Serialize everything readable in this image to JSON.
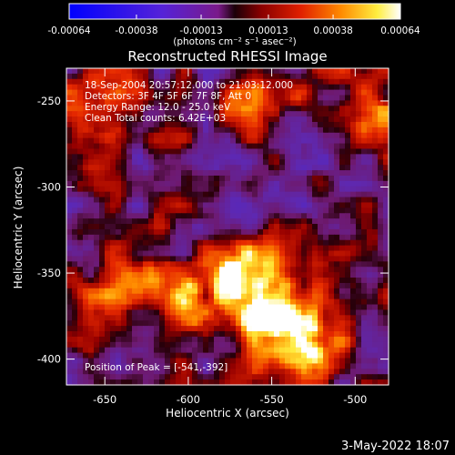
{
  "chart_data": {
    "type": "heatmap",
    "title": "Reconstructed RHESSI Image",
    "xlabel": "Heliocentric X (arcsec)",
    "ylabel": "Heliocentric Y (arcsec)",
    "xlim": [
      -673,
      -480
    ],
    "ylim": [
      -415,
      -231
    ],
    "x_ticks": [
      "-650",
      "-600",
      "-550",
      "-500"
    ],
    "x_tick_values": [
      -650,
      -600,
      -550,
      -500
    ],
    "y_ticks": [
      "-250",
      "-300",
      "-350",
      "-400"
    ],
    "y_tick_values": [
      -250,
      -300,
      -350,
      -400
    ],
    "colorbar": {
      "tick_labels": [
        "-0.00064",
        "-0.00038",
        "-0.00013",
        "0.00013",
        "0.00038",
        "0.00064"
      ],
      "tick_values": [
        -0.00064,
        -0.00038,
        -0.00013,
        0.00013,
        0.00038,
        0.00064
      ],
      "units": "(photons cm⁻² s⁻¹ asec⁻²)",
      "range": [
        -0.00064,
        0.00064
      ],
      "colormap": "blue-purple-red-yellow-white"
    },
    "annotations": {
      "time": "18-Sep-2004 20:57:12.000 to 21:03:12.000",
      "detectors": "Detectors: 3F 4F 5F 6F 7F 8F, Att 0",
      "energy": "Energy Range: 12.0 - 25.0 keV",
      "clean": "Clean     Total counts: 6.42E+03",
      "peak": "Position of Peak = [-541,-392]"
    },
    "peak_position": [
      -541,
      -392
    ],
    "bright_regions": [
      {
        "x": -545,
        "y": -375,
        "level": "high"
      },
      {
        "x": -535,
        "y": -395,
        "level": "high"
      },
      {
        "x": -565,
        "y": -350,
        "level": "high"
      },
      {
        "x": -600,
        "y": -365,
        "level": "medium"
      },
      {
        "x": -640,
        "y": -355,
        "level": "medium"
      },
      {
        "x": -655,
        "y": -255,
        "level": "medium"
      },
      {
        "x": -490,
        "y": -255,
        "level": "medium"
      },
      {
        "x": -560,
        "y": -250,
        "level": "medium"
      }
    ]
  },
  "footer": {
    "date": "3-May-2022 18:07"
  },
  "colors": {
    "background": "#000000",
    "text": "#ffffff"
  }
}
